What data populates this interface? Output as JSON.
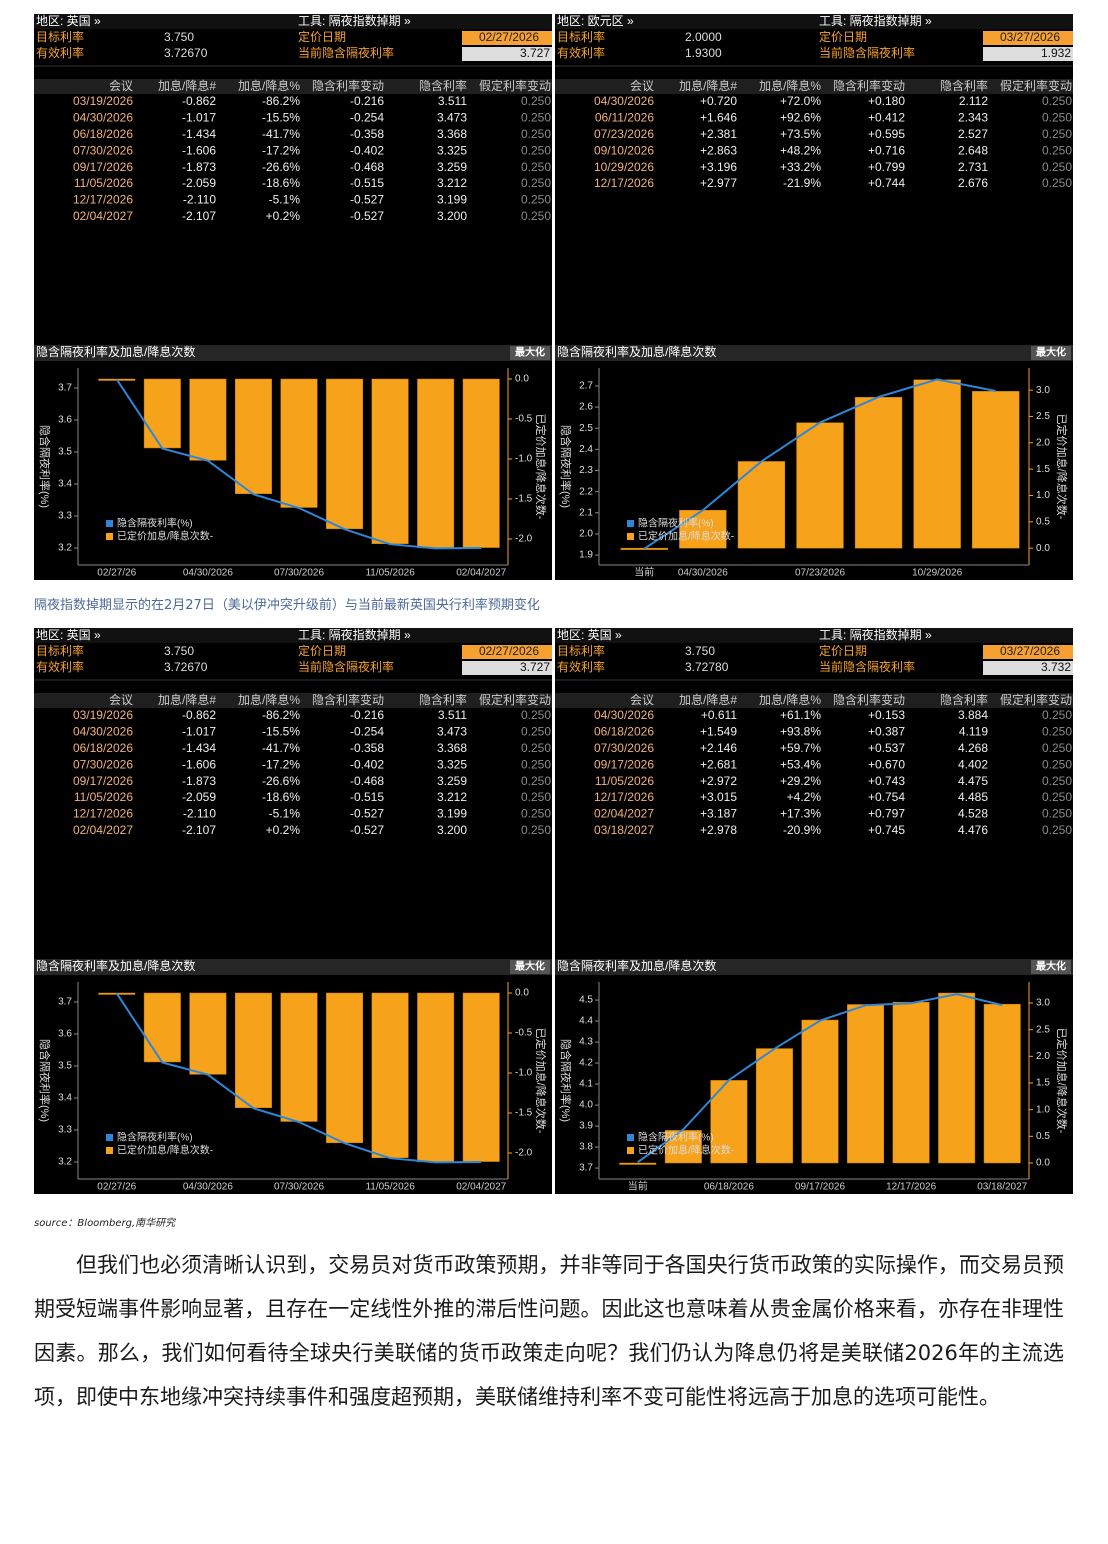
{
  "panels": [
    {
      "header": {
        "region": "地区: 英国 »",
        "tool": "工具: 隔夜指数掉期 »",
        "target_label": "目标利率",
        "target_value": "3.750",
        "effective_label": "有效利率",
        "effective_value": "3.72670",
        "date_label": "定价日期",
        "date_value": "02/27/2026",
        "implied_label": "当前隐含隔夜利率",
        "implied_value": "3.727"
      },
      "table": {
        "columns": [
          "会议",
          "加息/降息#",
          "加息/降息%",
          "隐含利率变动",
          "隐含利率",
          "假定利率变动"
        ],
        "rows": [
          [
            "03/19/2026",
            "-0.862",
            "-86.2%",
            "-0.216",
            "3.511",
            "0.250"
          ],
          [
            "04/30/2026",
            "-1.017",
            "-15.5%",
            "-0.254",
            "3.473",
            "0.250"
          ],
          [
            "06/18/2026",
            "-1.434",
            "-41.7%",
            "-0.358",
            "3.368",
            "0.250"
          ],
          [
            "07/30/2026",
            "-1.606",
            "-17.2%",
            "-0.402",
            "3.325",
            "0.250"
          ],
          [
            "09/17/2026",
            "-1.873",
            "-26.6%",
            "-0.468",
            "3.259",
            "0.250"
          ],
          [
            "11/05/2026",
            "-2.059",
            "-18.6%",
            "-0.515",
            "3.212",
            "0.250"
          ],
          [
            "12/17/2026",
            "-2.110",
            "-5.1%",
            "-0.527",
            "3.199",
            "0.250"
          ],
          [
            "02/04/2027",
            "-2.107",
            "+0.2%",
            "-0.527",
            "3.200",
            "0.250"
          ]
        ]
      },
      "chart_data": {
        "type": "combo",
        "title": "隐含隔夜利率及加息/降息次数",
        "button": "最大化",
        "ylabel": "隐含隔夜利率(%)",
        "y2label": "已定价加息/降息次数-",
        "categories": [
          "02/27/26",
          null,
          "04/30/2026",
          null,
          "07/30/2026",
          null,
          "11/05/2026",
          null,
          "02/04/2027"
        ],
        "series": [
          {
            "name": "隐含隔夜利率(%)",
            "type": "line",
            "color": "#2f86d8",
            "values": [
              3.7267,
              3.511,
              3.473,
              3.368,
              3.325,
              3.259,
              3.212,
              3.199,
              3.2
            ]
          },
          {
            "name": "已定价加息/降息次数-",
            "type": "bar",
            "axis": "y2",
            "color": "#f7a21b",
            "values": [
              0,
              -0.862,
              -1.017,
              -1.434,
              -1.606,
              -1.873,
              -2.059,
              -2.11,
              -2.107
            ]
          }
        ],
        "ylim": [
          3.147,
          3.7625
        ],
        "yticks": [
          3.2,
          3.3,
          3.4,
          3.5,
          3.6,
          3.7
        ],
        "y2lim": [
          -2.325,
          0.1375
        ],
        "y2ticks": [
          {
            "value": 0,
            "label": "0.0"
          },
          -0.5,
          {
            "value": -1,
            "label": "-1.0"
          },
          -1.5,
          {
            "value": -2,
            "label": "-2.0"
          }
        ]
      }
    },
    {
      "header": {
        "region": "地区: 欧元区 »",
        "tool": "工具: 隔夜指数掉期 »",
        "target_label": "目标利率",
        "target_value": "2.0000",
        "effective_label": "有效利率",
        "effective_value": "1.9300",
        "date_label": "定价日期",
        "date_value": "03/27/2026",
        "implied_label": "当前隐含隔夜利率",
        "implied_value": "1.932"
      },
      "table": {
        "columns": [
          "会议",
          "加息/降息#",
          "加息/降息%",
          "隐含利率变动",
          "隐含利率",
          "假定利率变动"
        ],
        "rows": [
          [
            "04/30/2026",
            "+0.720",
            "+72.0%",
            "+0.180",
            "2.112",
            "0.250"
          ],
          [
            "06/11/2026",
            "+1.646",
            "+92.6%",
            "+0.412",
            "2.343",
            "0.250"
          ],
          [
            "07/23/2026",
            "+2.381",
            "+73.5%",
            "+0.595",
            "2.527",
            "0.250"
          ],
          [
            "09/10/2026",
            "+2.863",
            "+48.2%",
            "+0.716",
            "2.648",
            "0.250"
          ],
          [
            "10/29/2026",
            "+3.196",
            "+33.2%",
            "+0.799",
            "2.731",
            "0.250"
          ],
          [
            "12/17/2026",
            "+2.977",
            "-21.9%",
            "+0.744",
            "2.676",
            "0.250"
          ]
        ]
      },
      "chart_data": {
        "type": "combo",
        "title": "隐含隔夜利率及加息/降息次数",
        "button": "最大化",
        "ylabel": "隐含隔夜利率(%)",
        "y2label": "已定价加息/降息次数-",
        "categories": [
          "当前",
          "04/30/2026",
          null,
          "07/23/2026",
          null,
          "10/29/2026",
          null
        ],
        "series": [
          {
            "name": "隐含隔夜利率(%)",
            "type": "line",
            "color": "#2f86d8",
            "values": [
              1.93,
              2.112,
              2.343,
              2.527,
              2.648,
              2.731,
              2.676
            ]
          },
          {
            "name": "已定价加息/降息次数-",
            "type": "bar",
            "axis": "y2",
            "color": "#f7a21b",
            "values": [
              0,
              0.72,
              1.646,
              2.381,
              2.863,
              3.196,
              2.977
            ]
          }
        ],
        "ylim": [
          1.853,
          2.785
        ],
        "yticks": [
          1.9,
          {
            "value": 2,
            "label": "2.0"
          },
          2.1,
          2.2,
          2.3,
          2.4,
          2.5,
          2.6,
          2.7
        ],
        "y2lim": [
          -0.32,
          3.42
        ],
        "y2ticks": [
          {
            "value": 0,
            "label": "0.0"
          },
          0.5,
          {
            "value": 1,
            "label": "1.0"
          },
          1.5,
          {
            "value": 2,
            "label": "2.0"
          },
          2.5,
          {
            "value": 3,
            "label": "3.0"
          }
        ]
      }
    },
    {
      "header": {
        "region": "地区: 英国 »",
        "tool": "工具: 隔夜指数掉期 »",
        "target_label": "目标利率",
        "target_value": "3.750",
        "effective_label": "有效利率",
        "effective_value": "3.72670",
        "date_label": "定价日期",
        "date_value": "02/27/2026",
        "implied_label": "当前隐含隔夜利率",
        "implied_value": "3.727"
      },
      "table": {
        "columns": [
          "会议",
          "加息/降息#",
          "加息/降息%",
          "隐含利率变动",
          "隐含利率",
          "假定利率变动"
        ],
        "rows": [
          [
            "03/19/2026",
            "-0.862",
            "-86.2%",
            "-0.216",
            "3.511",
            "0.250"
          ],
          [
            "04/30/2026",
            "-1.017",
            "-15.5%",
            "-0.254",
            "3.473",
            "0.250"
          ],
          [
            "06/18/2026",
            "-1.434",
            "-41.7%",
            "-0.358",
            "3.368",
            "0.250"
          ],
          [
            "07/30/2026",
            "-1.606",
            "-17.2%",
            "-0.402",
            "3.325",
            "0.250"
          ],
          [
            "09/17/2026",
            "-1.873",
            "-26.6%",
            "-0.468",
            "3.259",
            "0.250"
          ],
          [
            "11/05/2026",
            "-2.059",
            "-18.6%",
            "-0.515",
            "3.212",
            "0.250"
          ],
          [
            "12/17/2026",
            "-2.110",
            "-5.1%",
            "-0.527",
            "3.199",
            "0.250"
          ],
          [
            "02/04/2027",
            "-2.107",
            "+0.2%",
            "-0.527",
            "3.200",
            "0.250"
          ]
        ]
      },
      "chart_data": {
        "type": "combo",
        "title": "隐含隔夜利率及加息/降息次数",
        "button": "最大化",
        "ylabel": "隐含隔夜利率(%)",
        "y2label": "已定价加息/降息次数-",
        "categories": [
          "02/27/26",
          null,
          "04/30/2026",
          null,
          "07/30/2026",
          null,
          "11/05/2026",
          null,
          "02/04/2027"
        ],
        "series": [
          {
            "name": "隐含隔夜利率(%)",
            "type": "line",
            "color": "#2f86d8",
            "values": [
              3.7267,
              3.511,
              3.473,
              3.368,
              3.325,
              3.259,
              3.212,
              3.199,
              3.2
            ]
          },
          {
            "name": "已定价加息/降息次数-",
            "type": "bar",
            "axis": "y2",
            "color": "#f7a21b",
            "values": [
              0,
              -0.862,
              -1.017,
              -1.434,
              -1.606,
              -1.873,
              -2.059,
              -2.11,
              -2.107
            ]
          }
        ],
        "ylim": [
          3.147,
          3.7625
        ],
        "yticks": [
          3.2,
          3.3,
          3.4,
          3.5,
          3.6,
          3.7
        ],
        "y2lim": [
          -2.325,
          0.1375
        ],
        "y2ticks": [
          {
            "value": 0,
            "label": "0.0"
          },
          -0.5,
          {
            "value": -1,
            "label": "-1.0"
          },
          -1.5,
          {
            "value": -2,
            "label": "-2.0"
          }
        ]
      }
    },
    {
      "header": {
        "region": "地区: 英国 »",
        "tool": "工具: 隔夜指数掉期 »",
        "target_label": "目标利率",
        "target_value": "3.750",
        "effective_label": "有效利率",
        "effective_value": "3.72780",
        "date_label": "定价日期",
        "date_value": "03/27/2026",
        "implied_label": "当前隐含隔夜利率",
        "implied_value": "3.732"
      },
      "table": {
        "columns": [
          "会议",
          "加息/降息#",
          "加息/降息%",
          "隐含利率变动",
          "隐含利率",
          "假定利率变动"
        ],
        "rows": [
          [
            "04/30/2026",
            "+0.611",
            "+61.1%",
            "+0.153",
            "3.884",
            "0.250"
          ],
          [
            "06/18/2026",
            "+1.549",
            "+93.8%",
            "+0.387",
            "4.119",
            "0.250"
          ],
          [
            "07/30/2026",
            "+2.146",
            "+59.7%",
            "+0.537",
            "4.268",
            "0.250"
          ],
          [
            "09/17/2026",
            "+2.681",
            "+53.4%",
            "+0.670",
            "4.402",
            "0.250"
          ],
          [
            "11/05/2026",
            "+2.972",
            "+29.2%",
            "+0.743",
            "4.475",
            "0.250"
          ],
          [
            "12/17/2026",
            "+3.015",
            "+4.2%",
            "+0.754",
            "4.485",
            "0.250"
          ],
          [
            "02/04/2027",
            "+3.187",
            "+17.3%",
            "+0.797",
            "4.528",
            "0.250"
          ],
          [
            "03/18/2027",
            "+2.978",
            "-20.9%",
            "+0.745",
            "4.476",
            "0.250"
          ]
        ]
      },
      "chart_data": {
        "type": "combo",
        "title": "隐含隔夜利率及加息/降息次数",
        "button": "最大化",
        "ylabel": "隐含隔夜利率(%)",
        "y2label": "已定价加息/降息次数-",
        "categories": [
          "当前",
          null,
          "06/18/2026",
          null,
          "09/17/2026",
          null,
          "12/17/2026",
          null,
          "03/18/2027"
        ],
        "series": [
          {
            "name": "隐含隔夜利率(%)",
            "type": "line",
            "color": "#2f86d8",
            "values": [
              3.7278,
              3.884,
              4.119,
              4.268,
              4.402,
              4.475,
              4.485,
              4.528,
              4.476
            ]
          },
          {
            "name": "已定价加息/降息次数-",
            "type": "bar",
            "axis": "y2",
            "color": "#f7a21b",
            "values": [
              0,
              0.611,
              1.549,
              2.146,
              2.681,
              2.972,
              3.015,
              3.187,
              2.978
            ]
          }
        ],
        "ylim": [
          3.648,
          4.586
        ],
        "yticks": [
          3.7,
          3.8,
          3.9,
          {
            "value": 4,
            "label": "4.0"
          },
          4.1,
          4.2,
          4.3,
          4.4,
          4.5
        ],
        "y2lim": [
          -0.3,
          3.394
        ],
        "y2ticks": [
          {
            "value": 0,
            "label": "0.0"
          },
          0.5,
          {
            "value": 1,
            "label": "1.0"
          },
          1.5,
          {
            "value": 2,
            "label": "2.0"
          },
          2.5,
          {
            "value": 3,
            "label": "3.0"
          }
        ]
      }
    }
  ],
  "caption": "隔夜指数掉期显示的在2月27日（美以伊冲突升级前）与当前最新英国央行利率预期变化",
  "source": "source：Bloomberg,南华研究",
  "paragraph": "但我们也必须清晰认识到，交易员对货币政策预期，并非等同于各国央行货币政策的实际操作，而交易员预期受短端事件影响显著，且存在一定线性外推的滞后性问题。因此这也意味着从贵金属价格来看，亦存在非理性因素。那么，我们如何看待全球央行美联储的货币政策走向呢？我们仍认为降息仍将是美联储2026年的主流选项，即使中东地缘冲突持续事件和强度超预期，美联储维持利率不变可能性将远高于加息的选项可能性。"
}
